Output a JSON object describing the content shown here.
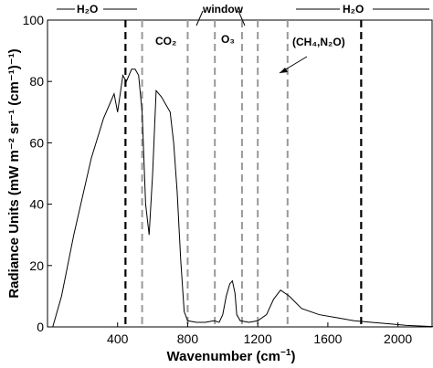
{
  "chart_data": {
    "type": "line",
    "title": "",
    "xlabel": "Wavenumber (cm",
    "xlabel_sup": "−1",
    "xlabel_end": ")",
    "ylabel": "Radiance Units (mW m⁻² sr⁻¹ (cm⁻¹)⁻¹)",
    "xlim": [
      0,
      2200
    ],
    "ylim": [
      0,
      100
    ],
    "x_ticks": [
      400,
      800,
      1200,
      1600,
      2000
    ],
    "y_ticks": [
      0,
      20,
      40,
      60,
      80,
      100
    ],
    "grid": false,
    "series": [
      {
        "style": "solid-black",
        "x": [
          30,
          80,
          150,
          250,
          320,
          380,
          400,
          430,
          450,
          480,
          500,
          520,
          540,
          560,
          580,
          600,
          620,
          650,
          700,
          720,
          740,
          760,
          780,
          800,
          850,
          900,
          950,
          980,
          1000,
          1020,
          1040,
          1055,
          1070,
          1080,
          1100,
          1150,
          1200,
          1250,
          1290,
          1330,
          1380,
          1450,
          1550,
          1650,
          1750,
          1850,
          1950,
          2050,
          2200
        ],
        "y": [
          0,
          10,
          30,
          55,
          68,
          76,
          70,
          82,
          80,
          84,
          84,
          82,
          70,
          40,
          30,
          50,
          77,
          75,
          70,
          60,
          44,
          22,
          5,
          2,
          1.5,
          1.5,
          2,
          1.5,
          4,
          10,
          14,
          15,
          11,
          4,
          2,
          1.5,
          2,
          4,
          9,
          12,
          10,
          6,
          4,
          3,
          2,
          1.5,
          1,
          0.5,
          0.1
        ]
      }
    ],
    "vlines_black_dashed": [
      445,
      1790
    ],
    "vlines_gray_dashed": [
      540,
      800,
      955,
      1110,
      1200,
      1370
    ],
    "annotations": {
      "h2o_left": "H₂O",
      "h2o_right": "H₂O",
      "window": "window",
      "co2": "CO₂",
      "o3": "O₃",
      "ch4_n2o": "(CH₄,N₂O)"
    }
  }
}
